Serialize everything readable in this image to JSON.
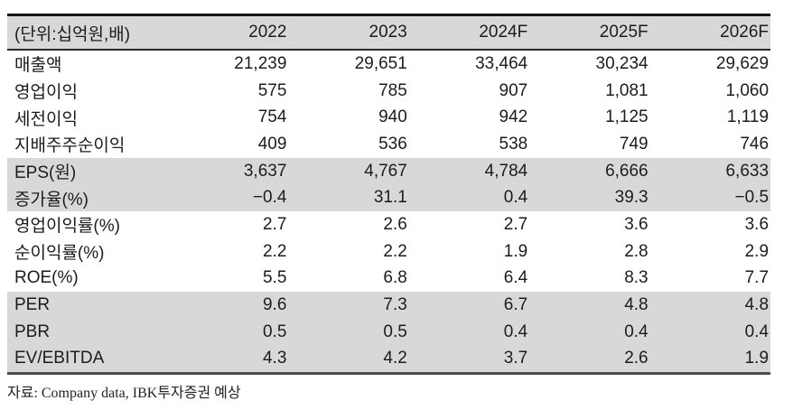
{
  "table": {
    "unit_label": "(단위:십억원,배)",
    "columns": [
      "2022",
      "2023",
      "2024F",
      "2025F",
      "2026F"
    ],
    "rows": [
      {
        "label": "매출액",
        "values": [
          "21,239",
          "29,651",
          "33,464",
          "30,234",
          "29,629"
        ],
        "shaded": false
      },
      {
        "label": "영업이익",
        "values": [
          "575",
          "785",
          "907",
          "1,081",
          "1,060"
        ],
        "shaded": false
      },
      {
        "label": "세전이익",
        "values": [
          "754",
          "940",
          "942",
          "1,125",
          "1,119"
        ],
        "shaded": false
      },
      {
        "label": "지배주주순이익",
        "values": [
          "409",
          "536",
          "538",
          "749",
          "746"
        ],
        "shaded": false
      },
      {
        "label": "EPS(원)",
        "values": [
          "3,637",
          "4,767",
          "4,784",
          "6,666",
          "6,633"
        ],
        "shaded": true
      },
      {
        "label": "증가율(%)",
        "values": [
          "−0.4",
          "31.1",
          "0.4",
          "39.3",
          "−0.5"
        ],
        "shaded": true
      },
      {
        "label": "영업이익률(%)",
        "values": [
          "2.7",
          "2.6",
          "2.7",
          "3.6",
          "3.6"
        ],
        "shaded": false
      },
      {
        "label": "순이익률(%)",
        "values": [
          "2.2",
          "2.2",
          "1.9",
          "2.8",
          "2.9"
        ],
        "shaded": false
      },
      {
        "label": "ROE(%)",
        "values": [
          "5.5",
          "6.8",
          "6.4",
          "8.3",
          "7.7"
        ],
        "shaded": false
      },
      {
        "label": "PER",
        "values": [
          "9.6",
          "7.3",
          "6.7",
          "4.8",
          "4.8"
        ],
        "shaded": true
      },
      {
        "label": "PBR",
        "values": [
          "0.5",
          "0.5",
          "0.4",
          "0.4",
          "0.4"
        ],
        "shaded": true
      },
      {
        "label": "EV/EBITDA",
        "values": [
          "4.3",
          "4.2",
          "3.7",
          "2.6",
          "1.9"
        ],
        "shaded": true
      }
    ],
    "source_note": "자료: Company data, IBK투자증권 예상"
  },
  "colors": {
    "row_shade": "#d8d8d8",
    "border_top": "#161616",
    "border_bottom": "#4c4c4c",
    "text": "#1c1c1c"
  },
  "chart_data": {
    "type": "table",
    "title": "(단위:십억원,배)",
    "categories": [
      "2022",
      "2023",
      "2024F",
      "2025F",
      "2026F"
    ],
    "series": [
      {
        "name": "매출액",
        "values": [
          21239,
          29651,
          33464,
          30234,
          29629
        ]
      },
      {
        "name": "영업이익",
        "values": [
          575,
          785,
          907,
          1081,
          1060
        ]
      },
      {
        "name": "세전이익",
        "values": [
          754,
          940,
          942,
          1125,
          1119
        ]
      },
      {
        "name": "지배주주순이익",
        "values": [
          409,
          536,
          538,
          749,
          746
        ]
      },
      {
        "name": "EPS(원)",
        "values": [
          3637,
          4767,
          4784,
          6666,
          6633
        ]
      },
      {
        "name": "증가율(%)",
        "values": [
          -0.4,
          31.1,
          0.4,
          39.3,
          -0.5
        ]
      },
      {
        "name": "영업이익률(%)",
        "values": [
          2.7,
          2.6,
          2.7,
          3.6,
          3.6
        ]
      },
      {
        "name": "순이익률(%)",
        "values": [
          2.2,
          2.2,
          1.9,
          2.8,
          2.9
        ]
      },
      {
        "name": "ROE(%)",
        "values": [
          5.5,
          6.8,
          6.4,
          8.3,
          7.7
        ]
      },
      {
        "name": "PER",
        "values": [
          9.6,
          7.3,
          6.7,
          4.8,
          4.8
        ]
      },
      {
        "name": "PBR",
        "values": [
          0.5,
          0.5,
          0.4,
          0.4,
          0.4
        ]
      },
      {
        "name": "EV/EBITDA",
        "values": [
          4.3,
          4.2,
          3.7,
          2.6,
          1.9
        ]
      }
    ]
  }
}
